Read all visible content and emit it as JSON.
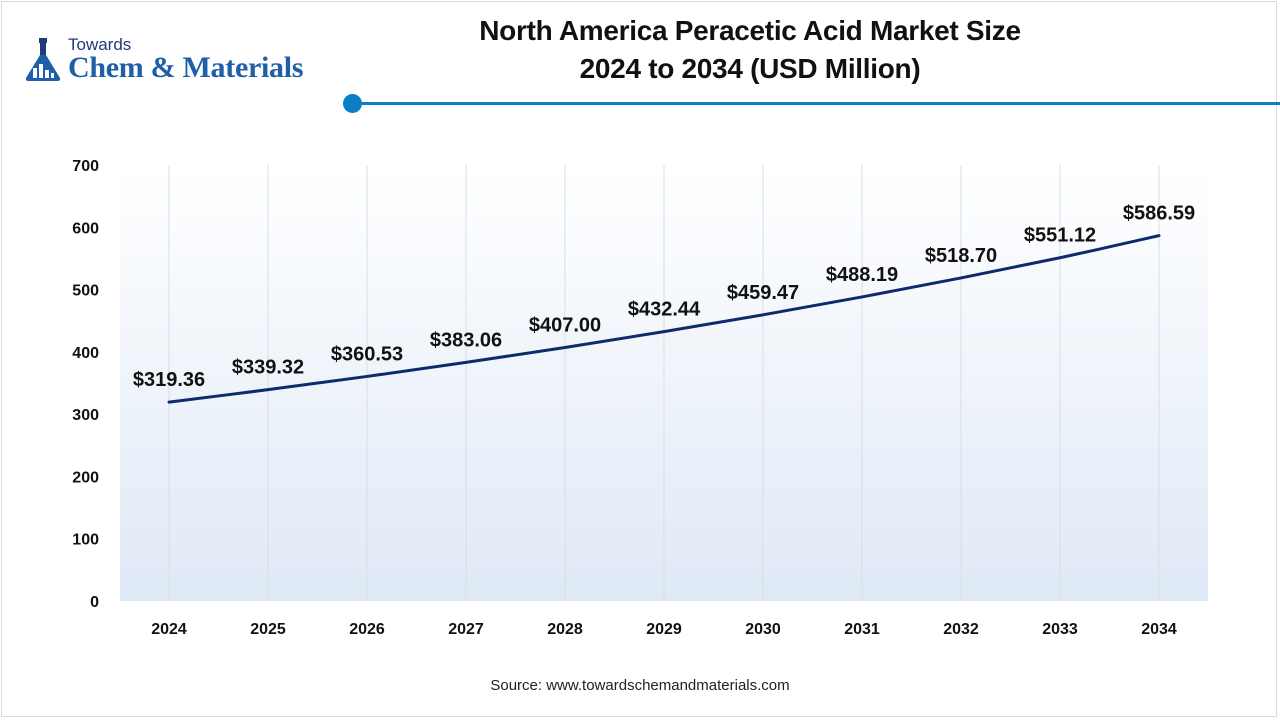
{
  "brand": {
    "logo_top": "Towards",
    "logo_name": "Chem & Materials"
  },
  "colors": {
    "accent": "#0b7fc6",
    "line": "#0d2b6b",
    "grid": "#d9dee6",
    "plot_bg_top": "#ffffff",
    "plot_bg_bottom": "#dfe9f6"
  },
  "chart_data": {
    "type": "line",
    "title": "North America Peracetic Acid Market Size",
    "subtitle": "2024 to 2034 (USD Million)",
    "xlabel": "",
    "ylabel": "",
    "categories": [
      "2024",
      "2025",
      "2026",
      "2027",
      "2028",
      "2029",
      "2030",
      "2031",
      "2032",
      "2033",
      "2034"
    ],
    "series": [
      {
        "name": "Market Size",
        "values": [
          319.36,
          339.32,
          360.53,
          383.06,
          407.0,
          432.44,
          459.47,
          488.19,
          518.7,
          551.12,
          586.59
        ],
        "labels": [
          "$319.36",
          "$339.32",
          "$360.53",
          "$383.06",
          "$407.00",
          "$432.44",
          "$459.47",
          "$488.19",
          "$518.70",
          "$551.12",
          "$586.59"
        ]
      }
    ],
    "ylim": [
      0,
      700
    ],
    "yticks": [
      0,
      100,
      200,
      300,
      400,
      500,
      600,
      700
    ],
    "grid": "vertical"
  },
  "source": "Source: www.towardschemandmaterials.com"
}
